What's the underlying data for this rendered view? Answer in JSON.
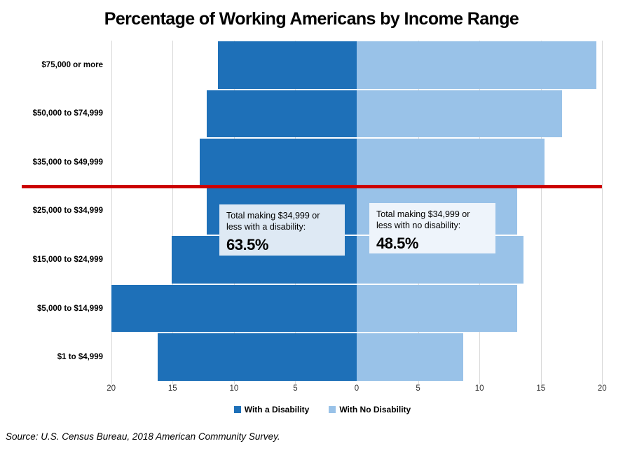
{
  "title": "Percentage of Working Americans by Income Range",
  "chart_data": {
    "type": "bar",
    "subtype": "diverging-horizontal-butterfly",
    "categories": [
      "$75,000 or more",
      "$50,000 to $74,999",
      "$35,000 to $49,999",
      "$25,000 to $34,999",
      "$15,000 to $24,999",
      "$5,000 to $14,999",
      "$1 to $4,999"
    ],
    "series": [
      {
        "name": "With a Disability",
        "side": "left",
        "color": "#1E70B8",
        "values": [
          11.3,
          12.2,
          12.8,
          12.2,
          15.1,
          20.0,
          16.2
        ]
      },
      {
        "name": "With No Disability",
        "side": "right",
        "color": "#99C2E8",
        "values": [
          19.5,
          16.7,
          15.3,
          13.1,
          13.6,
          13.1,
          8.7
        ]
      }
    ],
    "x_tick_labels": [
      "20",
      "15",
      "10",
      "5",
      "0",
      "5",
      "10",
      "15",
      "20"
    ],
    "xlim_each_side": [
      0,
      20
    ],
    "grid": true,
    "gridline_color": "#D9D9D9",
    "legend_position": "bottom",
    "reference_line": {
      "color": "#CC0101",
      "position": "between $35,000 to $49,999 and $25,000 to $34,999",
      "after_category_index": 2
    }
  },
  "annotations": [
    {
      "line1": "Total making $34,999 or",
      "line2": "less with a disability:",
      "value": "63.5%",
      "bg": "#DEE9F4"
    },
    {
      "line1": "Total making $34,999 or",
      "line2": "less with no disability:",
      "value": "48.5%",
      "bg": "#EEF4FB"
    }
  ],
  "legend": {
    "items": [
      {
        "label": "With a Disability",
        "color": "#1E70B8"
      },
      {
        "label": "With No Disability",
        "color": "#99C2E8"
      }
    ]
  },
  "source": "Source: U.S. Census Bureau, 2018 American Community Survey."
}
